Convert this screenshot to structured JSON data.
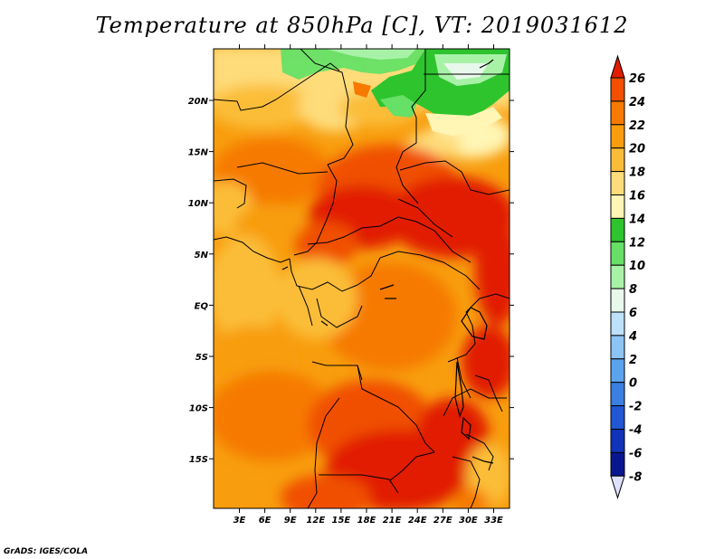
{
  "title": "Temperature at 850hPa [C], VT: 2019031612",
  "credit": "GrADS: IGES/COLA",
  "map": {
    "lon_ticks": [
      "3E",
      "6E",
      "9E",
      "12E",
      "15E",
      "18E",
      "21E",
      "24E",
      "27E",
      "30E",
      "33E"
    ],
    "lat_ticks": [
      "20N",
      "15N",
      "10N",
      "5N",
      "EQ",
      "5S",
      "10S",
      "15S"
    ]
  },
  "colorbar": {
    "levels": [
      "26",
      "24",
      "22",
      "20",
      "18",
      "16",
      "14",
      "12",
      "10",
      "8",
      "6",
      "4",
      "2",
      "0",
      "-2",
      "-4",
      "-6",
      "-8"
    ],
    "colors": [
      "#e11c00",
      "#f05000",
      "#f67a00",
      "#f89d0d",
      "#fbbd39",
      "#fedc7a",
      "#fff5b4",
      "#2ec42e",
      "#66e066",
      "#a8f2a8",
      "#e8f9ec",
      "#bde1fb",
      "#8cc4f5",
      "#5ca3ef",
      "#3b7fe2",
      "#2157d2",
      "#0f34b7",
      "#08168f",
      "#050565"
    ]
  },
  "colors": {
    "background": "#ffffff",
    "border": "#000000"
  }
}
